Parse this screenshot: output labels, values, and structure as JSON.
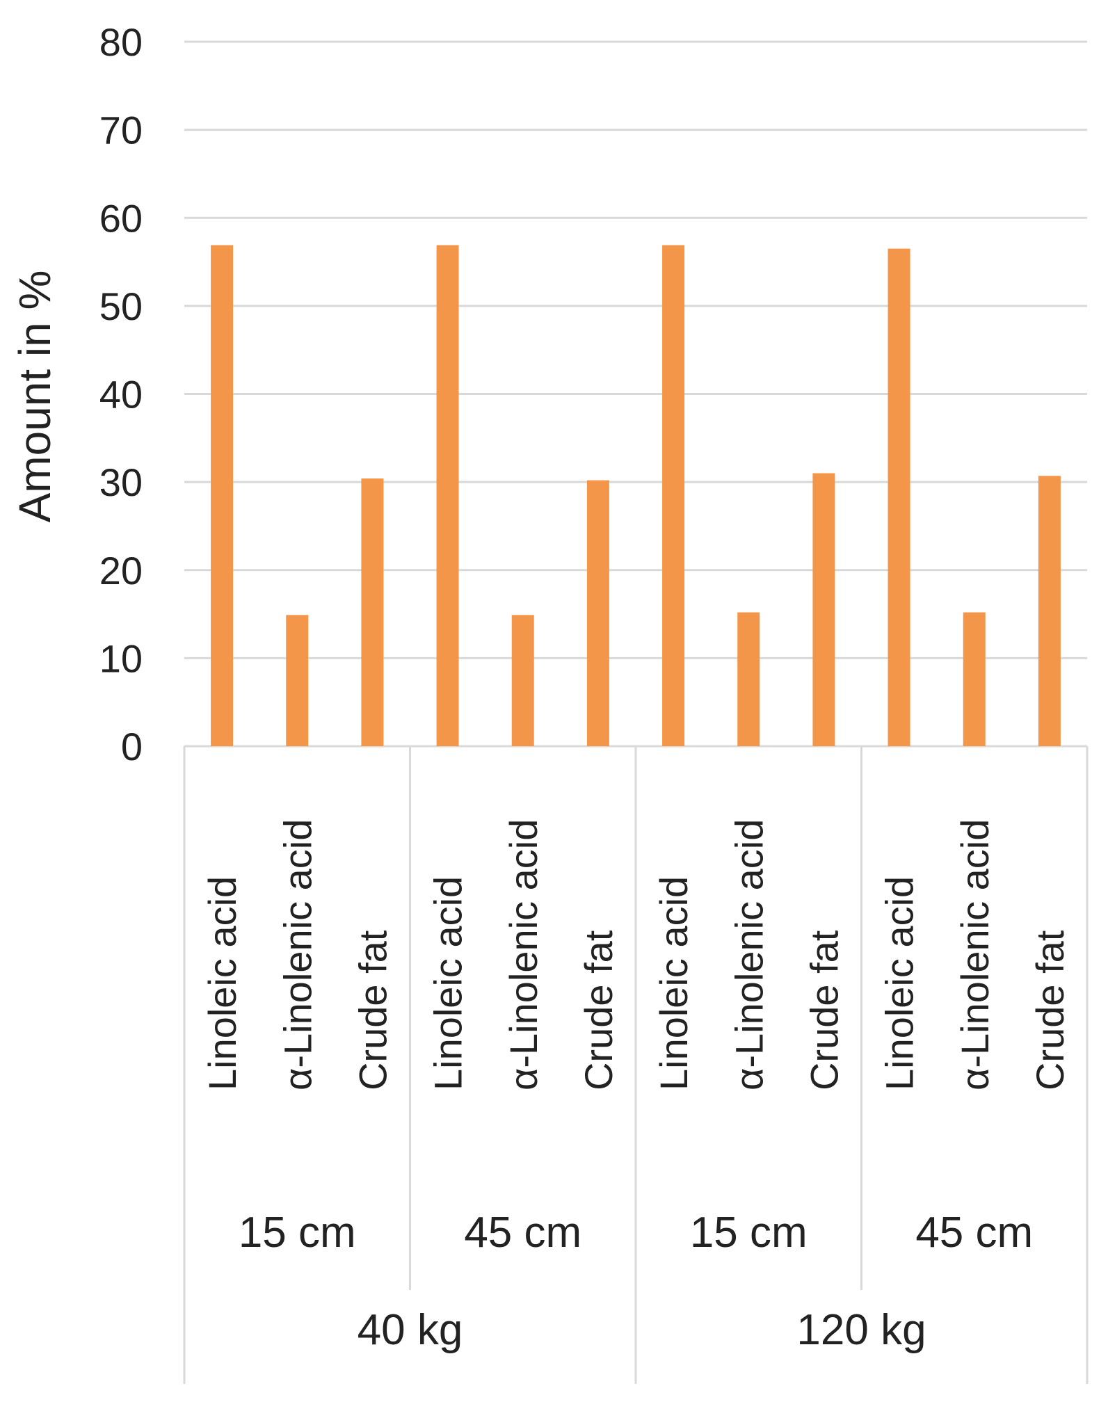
{
  "chart_data": {
    "type": "bar",
    "ylabel": "Amount in %",
    "xlabel": "",
    "ylim": [
      0,
      80
    ],
    "yticks": [
      0,
      10,
      20,
      30,
      40,
      50,
      60,
      70,
      80
    ],
    "grid": true,
    "bar_color": "#F4964A",
    "grid_color": "#D9D9D9",
    "categories": [
      "Linoleic acid",
      "α-Linolenic acid",
      "Crude fat",
      "Linoleic acid",
      "α-Linolenic acid",
      "Crude fat",
      "Linoleic acid",
      "α-Linolenic acid",
      "Crude fat",
      "Linoleic acid",
      "α-Linolenic acid",
      "Crude fat"
    ],
    "values": [
      56.9,
      14.9,
      30.4,
      56.9,
      14.9,
      30.2,
      56.9,
      15.2,
      31.0,
      56.5,
      15.2,
      30.7
    ],
    "depth_groups": [
      "15 cm",
      "45 cm",
      "15 cm",
      "45 cm"
    ],
    "mass_groups": [
      "40 kg",
      "120 kg"
    ]
  }
}
